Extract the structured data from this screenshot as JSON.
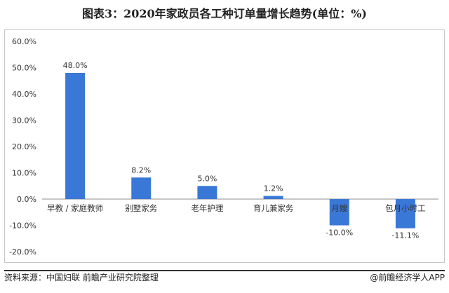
{
  "title": "图表3：2020年家政员各工种订单量增长趋势(单位：%)",
  "footer": {
    "source": "资料来源：中国妇联 前瞻产业研究院整理",
    "brand": "@前瞻经济学人APP"
  },
  "colors": {
    "bar": "#3a78d8",
    "axis": "#8c8c8c",
    "text": "#333333"
  },
  "chart_data": {
    "type": "bar",
    "categories": [
      "早教 / 家庭教师",
      "别墅家务",
      "老年护理",
      "育儿兼家务",
      "月嫂",
      "包月小时工"
    ],
    "values": [
      48.0,
      8.2,
      5.0,
      1.2,
      -10.0,
      -11.1
    ],
    "value_labels": [
      "48.0%",
      "8.2%",
      "5.0%",
      "1.2%",
      "-10.0%",
      "-11.1%"
    ],
    "ylim": [
      -20,
      60
    ],
    "yticks": [
      60,
      50,
      40,
      30,
      20,
      10,
      0,
      -10,
      -20
    ],
    "ytick_labels": [
      "60.0%",
      "50.0%",
      "40.0%",
      "30.0%",
      "20.0%",
      "10.0%",
      "0.0%",
      "-10.0%",
      "-20.0%"
    ],
    "grid": false,
    "legend": "none"
  }
}
